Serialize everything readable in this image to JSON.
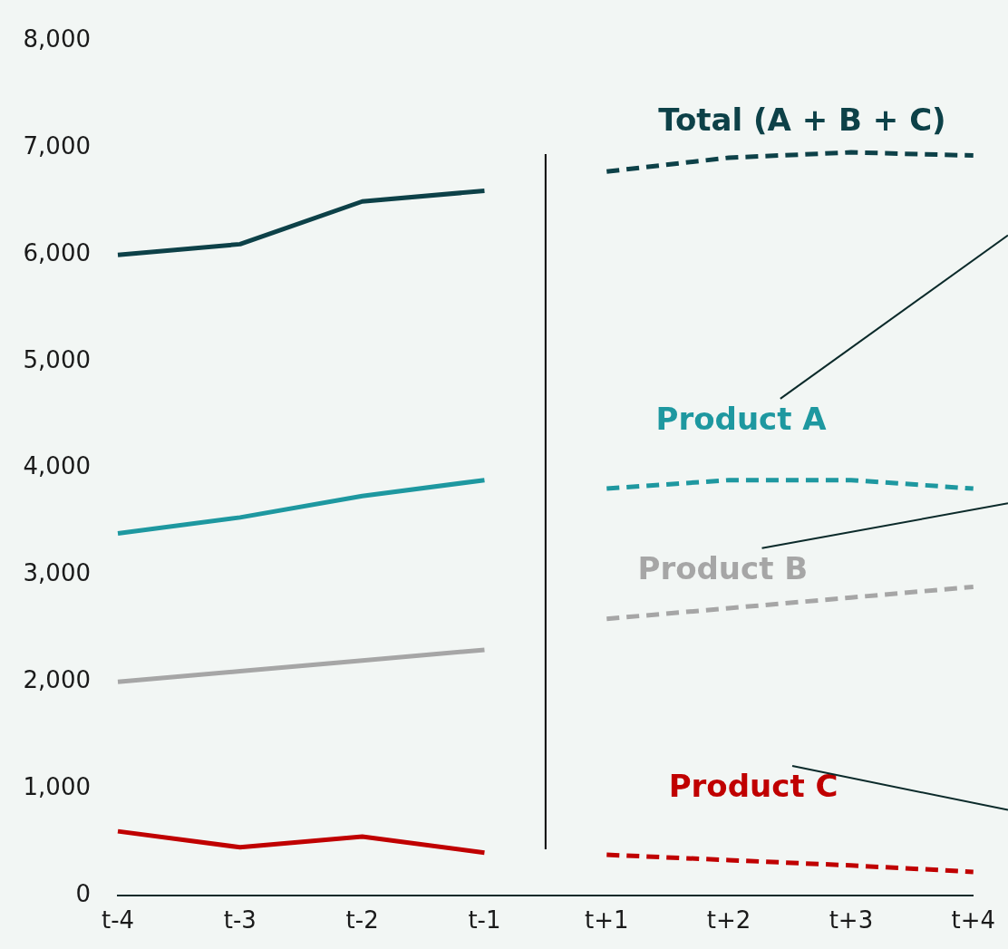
{
  "chart_data": {
    "type": "line",
    "categories": [
      "t-4",
      "t-3",
      "t-2",
      "t-1",
      "t+1",
      "t+2",
      "t+3",
      "t+4"
    ],
    "series": [
      {
        "name": "Total (A + B + C)",
        "color": "#0d4148",
        "values": [
          6000,
          6100,
          6500,
          6600,
          null,
          null,
          null,
          null
        ]
      },
      {
        "color": "#0d4148",
        "line_style": "dashed",
        "values": [
          null,
          null,
          null,
          null,
          6780,
          6910,
          6960,
          6930
        ]
      },
      {
        "name": "Product A",
        "color": "#1e98a0",
        "values": [
          3390,
          3540,
          3740,
          3890,
          null,
          null,
          null,
          null
        ]
      },
      {
        "color": "#1e98a0",
        "line_style": "dashed",
        "values": [
          null,
          null,
          null,
          null,
          3810,
          3890,
          3890,
          3810
        ]
      },
      {
        "name": "Product B",
        "color": "#a6a6a6",
        "values": [
          2000,
          2100,
          2200,
          2300,
          null,
          null,
          null,
          null
        ]
      },
      {
        "color": "#a6a6a6",
        "line_style": "dashed",
        "values": [
          null,
          null,
          null,
          null,
          2590,
          2690,
          2790,
          2890
        ]
      },
      {
        "name": "Product C",
        "color": "#c00000",
        "values": [
          600,
          450,
          550,
          400,
          null,
          null,
          null,
          null
        ]
      },
      {
        "color": "#c00000",
        "line_style": "dashed",
        "values": [
          null,
          null,
          null,
          null,
          380,
          330,
          280,
          220
        ]
      }
    ],
    "ylim": [
      0,
      8000
    ],
    "yticks": [
      0,
      {
        "value": 1000,
        "label": "1,000"
      },
      {
        "value": 2000,
        "label": "2,000"
      },
      {
        "value": 3000,
        "label": "3,000"
      },
      {
        "value": 4000,
        "label": "4,000"
      },
      {
        "value": 5000,
        "label": "5,000"
      },
      {
        "value": 6000,
        "label": "6,000"
      },
      {
        "value": 7000,
        "label": "7,000"
      },
      {
        "value": 8000,
        "label": "8,000"
      }
    ],
    "grid": false,
    "legend": false,
    "marker": "none",
    "line_style": "solid"
  }
}
